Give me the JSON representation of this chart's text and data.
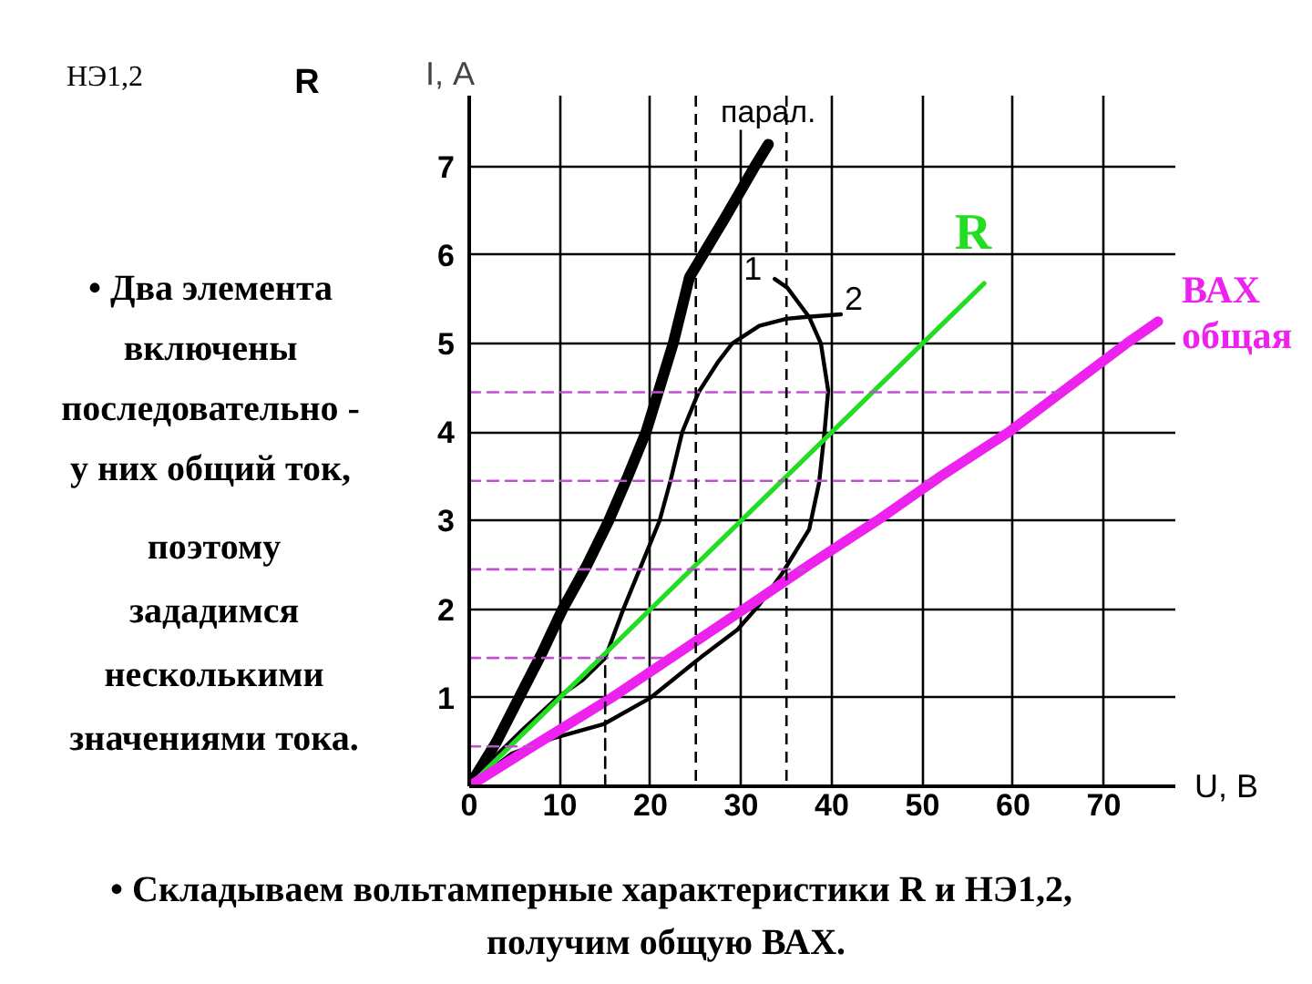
{
  "chart_data": {
    "type": "line",
    "xlabel": "U, В",
    "ylabel": "I, А",
    "xlim": [
      0,
      78
    ],
    "ylim": [
      0,
      7.8
    ],
    "xticks": [
      0,
      10,
      20,
      30,
      40,
      50,
      60,
      70
    ],
    "yticks": [
      1,
      2,
      3,
      4,
      5,
      6,
      7
    ],
    "grid": true,
    "series": [
      {
        "name": "парал.",
        "color": "#000000",
        "x": [
          0,
          3,
          5.5,
          8,
          10.3,
          13,
          15.4,
          17.5,
          19.5,
          21,
          22.5,
          24.3,
          28.1,
          31.5,
          33
        ],
        "values": [
          0,
          0.5,
          1,
          1.5,
          2,
          2.5,
          3,
          3.5,
          4,
          4.5,
          5,
          5.75,
          6.4,
          7,
          7.25
        ]
      },
      {
        "name": "1",
        "color": "#000000",
        "x": [
          0,
          4.7,
          9.5,
          14.8,
          20,
          25.6,
          29.6,
          32,
          34.5,
          37.5,
          38.6,
          39.2,
          39.6,
          38.8,
          37.5,
          35.1,
          33.7
        ],
        "values": [
          0,
          0.37,
          0.55,
          0.7,
          1,
          1.46,
          1.77,
          2.05,
          2.4,
          2.9,
          3.43,
          4,
          4.47,
          5,
          5.3,
          5.63,
          5.73
        ]
      },
      {
        "name": "2",
        "color": "#000000",
        "x": [
          0,
          3,
          6,
          9.7,
          12.5,
          15,
          17,
          19,
          21,
          22.2,
          23.5,
          25.3,
          27.5,
          29,
          32,
          35,
          37,
          41
        ],
        "values": [
          0,
          0.35,
          0.65,
          1,
          1.2,
          1.45,
          2,
          2.5,
          3,
          3.45,
          4,
          4.45,
          4.8,
          5,
          5.2,
          5.28,
          5.3,
          5.33
        ]
      },
      {
        "name": "R",
        "color": "#22dd22",
        "x": [
          0,
          56.8
        ],
        "values": [
          0,
          5.68
        ]
      },
      {
        "name": "ВАХ общая",
        "color": "#ee22ee",
        "x": [
          0,
          7,
          15.7,
          23,
          30.3,
          37.5,
          45,
          52,
          59.5,
          66,
          72.5,
          76
        ],
        "values": [
          0,
          0.45,
          1,
          1.5,
          2,
          2.5,
          3,
          3.5,
          4,
          4.5,
          5,
          5.25
        ]
      },
      {
        "color": "#c050d0",
        "line_style": "dashed",
        "x": [
          0,
          7
        ],
        "values": [
          0.45,
          0.45
        ]
      },
      {
        "color": "#c050d0",
        "line_style": "dashed",
        "x": [
          0,
          22
        ],
        "values": [
          1.45,
          1.45
        ]
      },
      {
        "color": "#c050d0",
        "line_style": "dashed",
        "x": [
          0,
          37
        ],
        "values": [
          2.45,
          2.45
        ]
      },
      {
        "color": "#c050d0",
        "line_style": "dashed",
        "x": [
          0,
          51
        ],
        "values": [
          3.45,
          3.45
        ]
      },
      {
        "color": "#c050d0",
        "line_style": "dashed",
        "x": [
          0,
          65
        ],
        "values": [
          4.45,
          4.45
        ]
      },
      {
        "color": "#000000",
        "line_style": "dashed",
        "x": [
          15,
          15
        ],
        "values": [
          0,
          1.45
        ]
      }
    ],
    "ref_lines": [
      {
        "axis": "x",
        "value": 25,
        "color": "#000000",
        "line_style": "dashed"
      },
      {
        "axis": "x",
        "value": 35,
        "color": "#000000",
        "line_style": "dashed"
      }
    ],
    "annotations": [
      "НЭ1,2",
      "R",
      "• Два элемента включены последовательно - у них общий ток,",
      "поэтому зададимся несколькими значениями тока.",
      "• Складываем вольтамперные характеристики R и НЭ1,2, получим общую ВАХ."
    ]
  }
}
